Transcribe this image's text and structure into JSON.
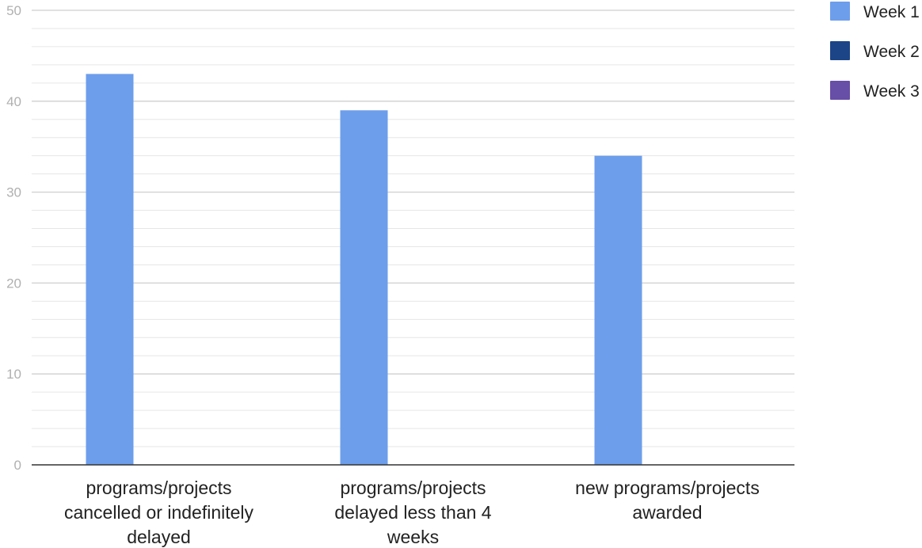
{
  "chart_data": {
    "type": "bar",
    "categories": [
      "programs/projects cancelled or indefinitely delayed",
      "programs/projects delayed less than 4 weeks",
      "new programs/projects awarded"
    ],
    "category_lines": [
      [
        "programs/projects",
        "cancelled or indefinitely",
        "delayed"
      ],
      [
        "programs/projects",
        "delayed less than 4",
        "weeks"
      ],
      [
        "new programs/projects",
        "awarded"
      ]
    ],
    "series": [
      {
        "name": "Week 1",
        "color": "#6d9eeb",
        "values": [
          43,
          39,
          34
        ]
      },
      {
        "name": "Week 2",
        "color": "#1c4587",
        "values": [
          null,
          null,
          null
        ]
      },
      {
        "name": "Week 3",
        "color": "#674ea7",
        "values": [
          null,
          null,
          null
        ]
      }
    ],
    "ylim": [
      0,
      50
    ],
    "yticks": [
      0,
      10,
      20,
      30,
      40,
      50
    ],
    "minor_step": 2,
    "grid": true,
    "legend_position": "top-right",
    "title": "",
    "xlabel": "",
    "ylabel": ""
  }
}
